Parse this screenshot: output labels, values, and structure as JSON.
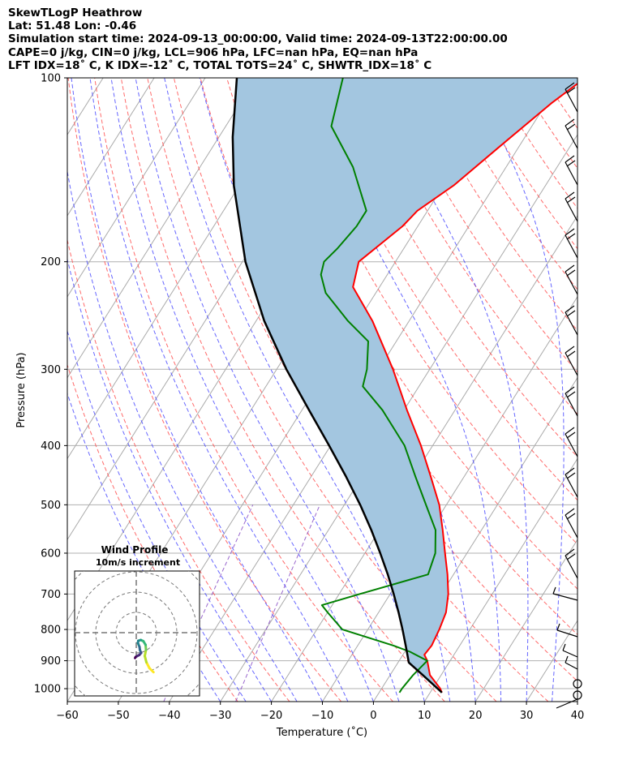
{
  "header": {
    "title": "SkewTLogP Heathrow",
    "location": "Lat: 51.48   Lon: -0.46",
    "times": "Simulation start time: 2024-09-13_00:00:00, Valid time: 2024-09-13T22:00:00.00",
    "params1": "CAPE=0 j/kg, CIN=0 j/kg, LCL=906 hPa, LFC=nan hPa, EQ=nan hPa",
    "params2": "LFT IDX=18˚ C, K IDX=-12˚ C, TOTAL TOTS=24˚ C, SHWTR_IDX=18˚ C"
  },
  "chart_data": {
    "type": "line",
    "subtype": "skew-t log-p",
    "xlabel": "Temperature (˚C)",
    "ylabel": "Pressure (hPa)",
    "xlim": [
      -60,
      40
    ],
    "ylim": [
      1050,
      100
    ],
    "x_ticks": [
      -60,
      -50,
      -40,
      -30,
      -20,
      -10,
      0,
      10,
      20,
      30,
      40
    ],
    "x_tick_labels": [
      "−60",
      "−50",
      "−40",
      "−30",
      "−20",
      "−10",
      "0",
      "10",
      "20",
      "30",
      "40"
    ],
    "y_ticks": [
      1000,
      900,
      800,
      700,
      600,
      500,
      400,
      300,
      200,
      100
    ],
    "y_tick_labels": [
      "1000",
      "900",
      "800",
      "700",
      "600",
      "500",
      "400",
      "300",
      "200",
      "100"
    ],
    "colors": {
      "temperature": "#ff0000",
      "dewpoint": "#008000",
      "parcel": "#000000",
      "shade": "#a3c6e0",
      "dry_adiabat": "#ff5050",
      "moist_adiabat": "#4040ff",
      "mixing_ratio": "#8040c0",
      "isotherm": "#aaaaaa"
    },
    "series": [
      {
        "name": "Temperature",
        "pressure": [
          1015,
          1000,
          950,
          900,
          880,
          850,
          800,
          750,
          700,
          650,
          600,
          550,
          500,
          450,
          400,
          350,
          300,
          250,
          220,
          200,
          175,
          165,
          150,
          130,
          110,
          100
        ],
        "temperature": [
          12.3,
          11.5,
          7.8,
          5.5,
          4.2,
          4.5,
          4.0,
          3.2,
          1.4,
          -1.2,
          -4.3,
          -7.6,
          -11.4,
          -16.5,
          -22.3,
          -29.4,
          -37.2,
          -47.2,
          -55.2,
          -57.2,
          -53.0,
          -52.0,
          -48.0,
          -43.9,
          -39.0,
          -35.5
        ]
      },
      {
        "name": "Dewpoint",
        "pressure": [
          1015,
          1000,
          950,
          900,
          870,
          850,
          800,
          750,
          730,
          700,
          650,
          600,
          550,
          500,
          450,
          400,
          350,
          320,
          300,
          270,
          250,
          225,
          210,
          200,
          190,
          175,
          165,
          140,
          120,
          100
        ],
        "temperature": [
          4.0,
          4.0,
          4.5,
          5.5,
          1.0,
          -3.0,
          -15.0,
          -20.0,
          -22.0,
          -16.0,
          -5.0,
          -6.2,
          -9.0,
          -14.0,
          -19.5,
          -25.5,
          -34.2,
          -41.0,
          -42.3,
          -45.5,
          -52.0,
          -59.8,
          -63.0,
          -64.0,
          -63.0,
          -62.0,
          -62.0,
          -70.0,
          -79.3,
          -83.0
        ]
      },
      {
        "name": "Parcel",
        "pressure": [
          1015,
          1000,
          950,
          906,
          850,
          800,
          750,
          700,
          650,
          600,
          550,
          500,
          450,
          400,
          350,
          300,
          250,
          200,
          150,
          125,
          100
        ],
        "temperature": [
          12.3,
          11.0,
          6.4,
          2.1,
          -0.6,
          -3.2,
          -6.1,
          -9.3,
          -12.9,
          -17.0,
          -21.6,
          -26.9,
          -33.1,
          -40.3,
          -48.6,
          -58.1,
          -68.4,
          -79.4,
          -91.1,
          -97.3,
          -103.8
        ]
      }
    ],
    "hodograph": {
      "title": "Wind Profile",
      "subtitle": "10m/s increment",
      "u": [
        8.5,
        6.5,
        5.0,
        4.2,
        4.8,
        4.6,
        3.5,
        2.2,
        1.0,
        0.8,
        1.6,
        1.8,
        2.4,
        1.5,
        0.5,
        -0.3,
        -0.6
      ],
      "v": [
        -19.5,
        -17.5,
        -14.6,
        -11.5,
        -8.5,
        -6.0,
        -4.2,
        -3.6,
        -4.0,
        -5.0,
        -7.0,
        -8.5,
        -10.0,
        -11.0,
        -11.5,
        -12.0,
        -12.5
      ],
      "colormap": "viridis"
    }
  }
}
